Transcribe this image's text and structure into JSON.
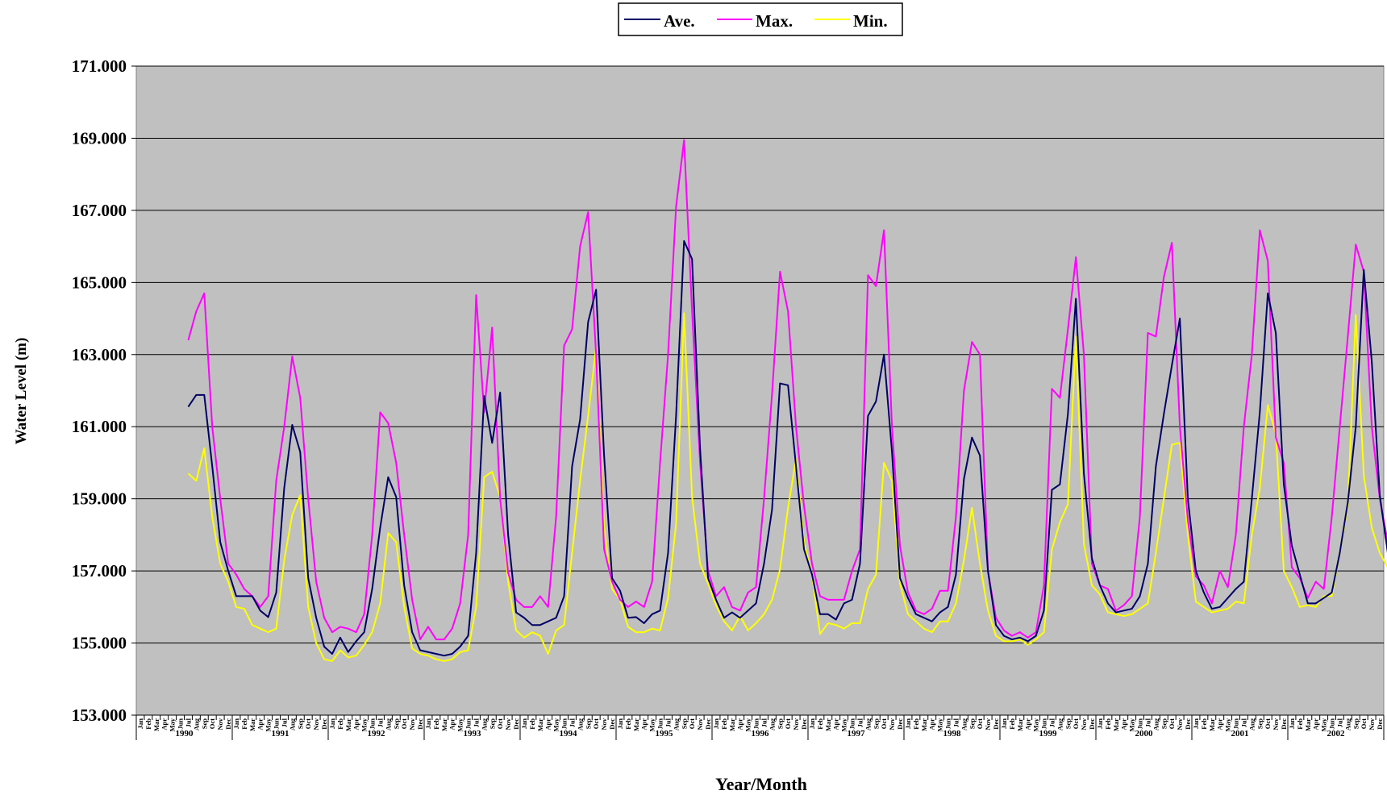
{
  "chart_data": {
    "type": "line",
    "xlabel": "Year/Month",
    "ylabel": "Water Level (m)",
    "ylim": [
      153,
      171
    ],
    "y_ticks": [
      "153.000",
      "155.000",
      "157.000",
      "159.000",
      "161.000",
      "163.000",
      "165.000",
      "167.000",
      "169.000",
      "171.000"
    ],
    "years": [
      "1990",
      "1991",
      "1992",
      "1993",
      "1994",
      "1995",
      "1996",
      "1997",
      "1998",
      "1999",
      "2000",
      "2001",
      "2002"
    ],
    "months": [
      "Jan",
      "Feb",
      "Mar",
      "Apr",
      "May",
      "Jun",
      "Jul",
      "Aug",
      "Sep",
      "Oct",
      "Nov",
      "Dec"
    ],
    "grid": true,
    "legend_position": "top-center",
    "background_color": "#c0c0c0",
    "series": [
      {
        "name": "Ave.",
        "color": "#000066",
        "values": [
          null,
          null,
          null,
          null,
          null,
          null,
          161.55,
          161.88,
          161.88,
          159.9,
          157.8,
          157.0,
          156.3,
          156.3,
          156.3,
          155.9,
          155.72,
          156.4,
          159.3,
          161.05,
          160.3,
          156.8,
          155.7,
          154.9,
          154.7,
          155.15,
          154.75,
          155.05,
          155.3,
          156.5,
          158.2,
          159.6,
          159.05,
          156.6,
          155.3,
          154.8,
          154.75,
          154.7,
          154.65,
          154.7,
          154.9,
          155.2,
          157.5,
          161.85,
          160.55,
          161.95,
          158.0,
          155.85,
          155.7,
          155.5,
          155.5,
          155.6,
          155.7,
          156.3,
          159.9,
          161.2,
          163.9,
          164.8,
          160.2,
          156.8,
          156.45,
          155.7,
          155.72,
          155.55,
          155.8,
          155.9,
          157.5,
          161.3,
          166.15,
          165.65,
          160.4,
          156.8,
          156.2,
          155.7,
          155.85,
          155.7,
          155.9,
          156.1,
          157.2,
          158.7,
          162.2,
          162.15,
          159.9,
          157.6,
          156.9,
          155.8,
          155.8,
          155.65,
          156.1,
          156.2,
          157.2,
          161.3,
          161.7,
          163.0,
          160.3,
          156.8,
          156.25,
          155.8,
          155.7,
          155.6,
          155.85,
          156.0,
          156.9,
          159.55,
          160.7,
          160.2,
          157.0,
          155.5,
          155.2,
          155.1,
          155.15,
          155.05,
          155.2,
          155.9,
          159.25,
          159.4,
          161.35,
          164.55,
          159.7,
          157.35,
          156.6,
          156.1,
          155.85,
          155.9,
          155.95,
          156.3,
          157.2,
          159.9,
          161.35,
          162.7,
          164.0,
          159.0,
          157.0,
          156.4,
          155.95,
          156.0,
          156.25,
          156.5,
          156.7,
          159.0,
          161.4,
          164.7,
          163.6,
          159.4,
          157.7,
          156.9,
          156.1,
          156.1,
          156.25,
          156.4,
          157.5,
          158.9,
          161.0,
          165.35,
          162.8,
          159.1,
          157.5,
          157.05
        ]
      },
      {
        "name": "Max.",
        "color": "#ff00ff",
        "values": [
          null,
          null,
          null,
          null,
          null,
          null,
          163.4,
          164.2,
          164.7,
          161.0,
          159.0,
          157.2,
          156.9,
          156.5,
          156.3,
          156.0,
          156.3,
          159.5,
          161.0,
          162.95,
          161.8,
          159.0,
          156.7,
          155.7,
          155.3,
          155.45,
          155.4,
          155.3,
          155.8,
          158.0,
          161.4,
          161.1,
          160.0,
          158.0,
          156.2,
          155.1,
          155.45,
          155.1,
          155.1,
          155.4,
          156.1,
          158.0,
          164.65,
          161.4,
          163.75,
          159.0,
          156.95,
          156.2,
          156.0,
          156.0,
          156.3,
          156.0,
          158.5,
          163.25,
          163.7,
          166.0,
          166.95,
          163.0,
          157.6,
          156.7,
          156.2,
          156.0,
          156.15,
          156.0,
          156.7,
          160.0,
          163.0,
          167.1,
          168.95,
          164.2,
          160.0,
          157.0,
          156.3,
          156.55,
          156.0,
          155.9,
          156.4,
          156.55,
          159.0,
          161.9,
          165.3,
          164.2,
          161.0,
          158.8,
          157.2,
          156.3,
          156.2,
          156.2,
          156.2,
          157.0,
          157.6,
          165.2,
          164.9,
          166.45,
          161.0,
          157.7,
          156.4,
          155.9,
          155.8,
          155.95,
          156.45,
          156.45,
          158.5,
          162.0,
          163.35,
          163.0,
          157.0,
          155.7,
          155.35,
          155.2,
          155.3,
          155.15,
          155.3,
          156.6,
          162.05,
          161.8,
          163.7,
          165.7,
          163.0,
          157.2,
          156.6,
          156.5,
          155.9,
          156.05,
          156.3,
          158.5,
          163.6,
          163.5,
          165.15,
          166.1,
          161.0,
          158.4,
          156.85,
          156.6,
          156.1,
          157.0,
          156.55,
          158.0,
          161.0,
          163.0,
          166.45,
          165.6,
          160.7,
          160.0,
          157.1,
          156.8,
          156.25,
          156.7,
          156.5,
          158.5,
          161.0,
          163.5,
          166.05,
          165.3,
          161.0,
          159.0,
          157.8,
          157.3
        ]
      },
      {
        "name": "Min.",
        "color": "#ffff00",
        "values": [
          null,
          null,
          null,
          null,
          null,
          null,
          159.7,
          159.5,
          160.4,
          158.5,
          157.2,
          156.7,
          156.0,
          155.95,
          155.5,
          155.4,
          155.3,
          155.4,
          157.3,
          158.55,
          159.1,
          156.0,
          155.0,
          154.55,
          154.5,
          154.8,
          154.6,
          154.65,
          154.95,
          155.3,
          156.1,
          158.05,
          157.8,
          156.0,
          154.85,
          154.7,
          154.65,
          154.55,
          154.5,
          154.55,
          154.75,
          154.8,
          156.0,
          159.6,
          159.75,
          159.05,
          156.7,
          155.35,
          155.15,
          155.3,
          155.2,
          154.7,
          155.35,
          155.5,
          157.5,
          159.5,
          161.3,
          163.2,
          158.2,
          156.5,
          156.2,
          155.45,
          155.3,
          155.3,
          155.4,
          155.35,
          156.25,
          158.3,
          164.15,
          159.05,
          157.2,
          156.65,
          156.05,
          155.6,
          155.35,
          155.75,
          155.35,
          155.55,
          155.8,
          156.2,
          157.05,
          158.75,
          160.1,
          157.8,
          156.9,
          155.25,
          155.55,
          155.5,
          155.4,
          155.55,
          155.55,
          156.5,
          156.9,
          160.0,
          159.5,
          156.65,
          155.8,
          155.6,
          155.4,
          155.3,
          155.6,
          155.6,
          156.1,
          157.3,
          158.75,
          157.2,
          155.9,
          155.2,
          155.05,
          155.05,
          155.1,
          154.95,
          155.1,
          155.3,
          157.6,
          158.35,
          158.85,
          163.5,
          157.75,
          156.6,
          156.35,
          155.85,
          155.8,
          155.75,
          155.8,
          155.95,
          156.1,
          157.5,
          159.0,
          160.5,
          160.55,
          158.0,
          156.15,
          156.0,
          155.85,
          155.9,
          155.95,
          156.15,
          156.1,
          158.0,
          159.3,
          161.6,
          160.8,
          157.0,
          156.55,
          156.0,
          156.05,
          156.0,
          156.3,
          156.3,
          157.5,
          158.8,
          164.1,
          159.65,
          158.2,
          157.5,
          157.1,
          156.7
        ]
      }
    ]
  }
}
